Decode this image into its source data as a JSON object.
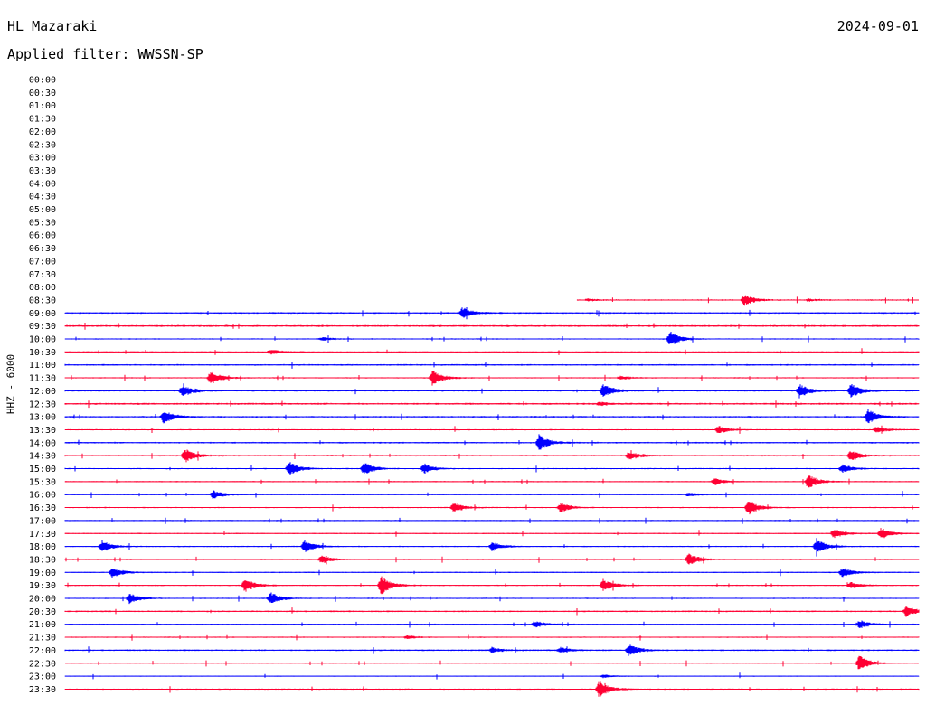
{
  "header": {
    "station": "HL Mazaraki",
    "date": "2024-09-01",
    "filter": "Applied filter: WWSSN-SP",
    "channel": "HHZ - 6000"
  },
  "colors": {
    "blue": "#0000ff",
    "red": "#ff0033"
  },
  "chart_data": {
    "type": "helicorder",
    "time_labels": [
      "00:00",
      "00:30",
      "01:00",
      "01:30",
      "02:00",
      "02:30",
      "03:00",
      "03:30",
      "04:00",
      "04:30",
      "05:00",
      "05:30",
      "06:00",
      "06:30",
      "07:00",
      "07:30",
      "08:00",
      "08:30",
      "09:00",
      "09:30",
      "10:00",
      "10:30",
      "11:00",
      "11:30",
      "12:00",
      "12:30",
      "13:00",
      "13:30",
      "14:00",
      "14:30",
      "15:00",
      "15:30",
      "16:00",
      "16:30",
      "17:00",
      "17:30",
      "18:00",
      "18:30",
      "19:00",
      "19:30",
      "20:00",
      "20:30",
      "21:00",
      "21:30",
      "22:00",
      "22:30",
      "23:00",
      "23:30"
    ],
    "rows": [
      {
        "t": "08:30",
        "start": 0.6,
        "noise": 0.8,
        "events": [
          [
            0.795,
            7
          ],
          [
            0.612,
            1.5
          ],
          [
            0.87,
            1.5
          ]
        ]
      },
      {
        "t": "09:00",
        "start": 0,
        "noise": 1.0,
        "events": [
          [
            0.465,
            6
          ]
        ]
      },
      {
        "t": "09:30",
        "start": 0,
        "noise": 1.2,
        "events": []
      },
      {
        "t": "10:00",
        "start": 0,
        "noise": 0.8,
        "events": [
          [
            0.708,
            9
          ],
          [
            0.3,
            2
          ]
        ]
      },
      {
        "t": "10:30",
        "start": 0,
        "noise": 0.8,
        "events": [
          [
            0.24,
            3
          ]
        ]
      },
      {
        "t": "11:00",
        "start": 0,
        "noise": 1.0,
        "events": []
      },
      {
        "t": "11:30",
        "start": 0,
        "noise": 0.8,
        "events": [
          [
            0.17,
            8
          ],
          [
            0.43,
            9
          ],
          [
            0.65,
            2
          ]
        ]
      },
      {
        "t": "12:00",
        "start": 0,
        "noise": 1.0,
        "events": [
          [
            0.137,
            7
          ],
          [
            0.63,
            8
          ],
          [
            0.86,
            8
          ],
          [
            0.92,
            9
          ]
        ]
      },
      {
        "t": "12:30",
        "start": 0,
        "noise": 1.2,
        "events": [
          [
            0.625,
            2
          ]
        ]
      },
      {
        "t": "13:00",
        "start": 0,
        "noise": 1.0,
        "events": [
          [
            0.115,
            8
          ],
          [
            0.94,
            9
          ]
        ]
      },
      {
        "t": "13:30",
        "start": 0,
        "noise": 0.8,
        "events": [
          [
            0.765,
            5
          ],
          [
            0.95,
            4
          ]
        ]
      },
      {
        "t": "14:00",
        "start": 0,
        "noise": 1.0,
        "events": [
          [
            0.555,
            9
          ]
        ]
      },
      {
        "t": "14:30",
        "start": 0,
        "noise": 1.0,
        "events": [
          [
            0.14,
            8
          ],
          [
            0.66,
            5
          ],
          [
            0.92,
            6
          ]
        ]
      },
      {
        "t": "15:00",
        "start": 0,
        "noise": 0.8,
        "events": [
          [
            0.262,
            8
          ],
          [
            0.35,
            8
          ],
          [
            0.42,
            6
          ],
          [
            0.91,
            5
          ]
        ]
      },
      {
        "t": "15:30",
        "start": 0,
        "noise": 0.8,
        "events": [
          [
            0.76,
            4
          ],
          [
            0.87,
            8
          ]
        ]
      },
      {
        "t": "16:00",
        "start": 0,
        "noise": 0.8,
        "events": [
          [
            0.173,
            5
          ],
          [
            0.73,
            2
          ]
        ]
      },
      {
        "t": "16:30",
        "start": 0,
        "noise": 0.8,
        "events": [
          [
            0.455,
            6
          ],
          [
            0.58,
            6
          ],
          [
            0.8,
            9
          ]
        ]
      },
      {
        "t": "17:00",
        "start": 0,
        "noise": 0.8,
        "events": []
      },
      {
        "t": "17:30",
        "start": 0,
        "noise": 0.8,
        "events": [
          [
            0.9,
            6
          ],
          [
            0.955,
            7
          ]
        ]
      },
      {
        "t": "18:00",
        "start": 0,
        "noise": 0.8,
        "events": [
          [
            0.043,
            7
          ],
          [
            0.28,
            7
          ],
          [
            0.5,
            5
          ],
          [
            0.88,
            8
          ]
        ]
      },
      {
        "t": "18:30",
        "start": 0,
        "noise": 0.8,
        "events": [
          [
            0.3,
            5
          ],
          [
            0.73,
            7
          ]
        ]
      },
      {
        "t": "19:00",
        "start": 0,
        "noise": 0.8,
        "events": [
          [
            0.055,
            6
          ],
          [
            0.91,
            6
          ]
        ]
      },
      {
        "t": "19:30",
        "start": 0,
        "noise": 0.8,
        "events": [
          [
            0.21,
            8
          ],
          [
            0.37,
            11
          ],
          [
            0.63,
            7
          ],
          [
            0.92,
            4
          ]
        ]
      },
      {
        "t": "20:00",
        "start": 0,
        "noise": 0.8,
        "events": [
          [
            0.075,
            6
          ],
          [
            0.24,
            7
          ]
        ]
      },
      {
        "t": "20:30",
        "start": 0,
        "noise": 1.0,
        "events": [
          [
            0.985,
            6
          ]
        ]
      },
      {
        "t": "21:00",
        "start": 0,
        "noise": 0.8,
        "events": [
          [
            0.55,
            4
          ],
          [
            0.93,
            5
          ]
        ]
      },
      {
        "t": "21:30",
        "start": 0,
        "noise": 0.8,
        "events": [
          [
            0.4,
            2
          ]
        ]
      },
      {
        "t": "22:00",
        "start": 0,
        "noise": 1.0,
        "events": [
          [
            0.66,
            7
          ],
          [
            0.5,
            3
          ],
          [
            0.58,
            3
          ]
        ]
      },
      {
        "t": "22:30",
        "start": 0,
        "noise": 0.6,
        "events": [
          [
            0.93,
            9
          ]
        ]
      },
      {
        "t": "23:00",
        "start": 0,
        "noise": 0.6,
        "events": [
          [
            0.63,
            2
          ]
        ]
      },
      {
        "t": "23:30",
        "start": 0,
        "noise": 0.8,
        "events": [
          [
            0.625,
            10
          ]
        ]
      }
    ]
  }
}
